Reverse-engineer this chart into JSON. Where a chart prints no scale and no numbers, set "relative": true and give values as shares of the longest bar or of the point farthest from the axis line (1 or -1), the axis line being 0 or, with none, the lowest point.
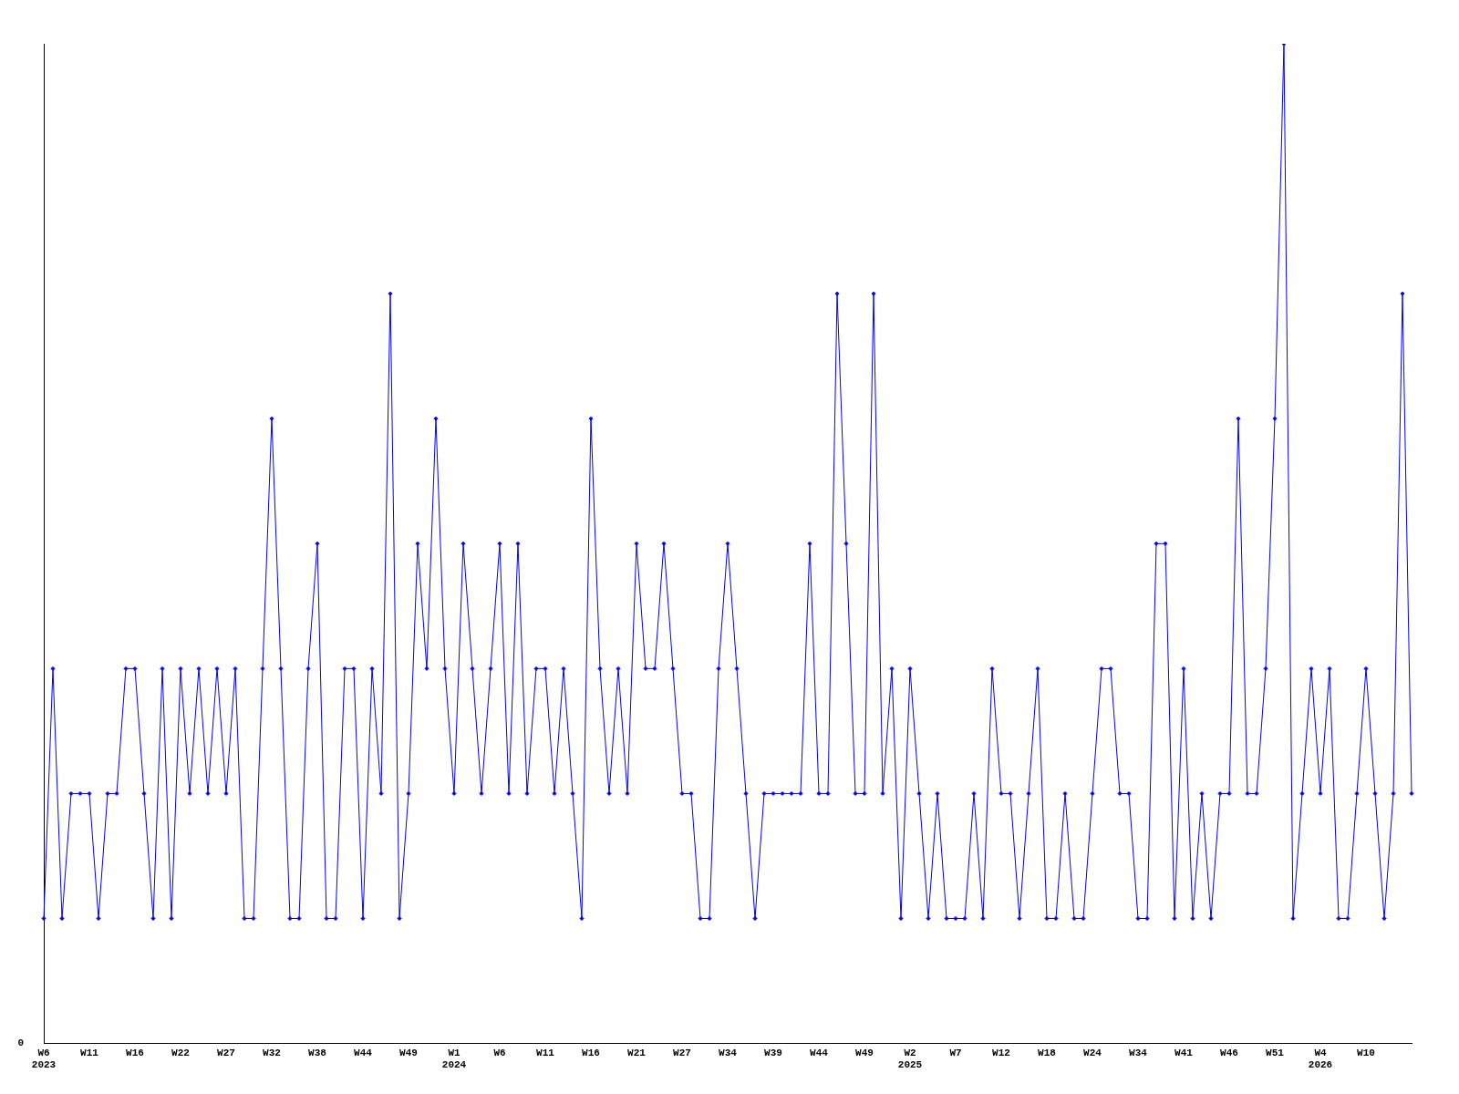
{
  "chart_data": {
    "type": "line",
    "relative": true,
    "marker": "diamond",
    "grid": false,
    "legend": false,
    "annotations": [
      "0"
    ],
    "categories": [
      "W6\n2023",
      null,
      null,
      null,
      null,
      "W11",
      null,
      null,
      null,
      null,
      "W16",
      null,
      null,
      null,
      null,
      "W22",
      null,
      null,
      null,
      null,
      "W27",
      null,
      null,
      null,
      null,
      "W32",
      null,
      null,
      null,
      null,
      "W38",
      null,
      null,
      null,
      null,
      "W44",
      null,
      null,
      null,
      null,
      "W49",
      null,
      null,
      null,
      null,
      "W1\n2024",
      null,
      null,
      null,
      null,
      "W6",
      null,
      null,
      null,
      null,
      "W11",
      null,
      null,
      null,
      null,
      "W16",
      null,
      null,
      null,
      null,
      "W21",
      null,
      null,
      null,
      null,
      "W27",
      null,
      null,
      null,
      null,
      "W34",
      null,
      null,
      null,
      null,
      "W39",
      null,
      null,
      null,
      null,
      "W44",
      null,
      null,
      null,
      null,
      "W49",
      null,
      null,
      null,
      null,
      "W2\n2025",
      null,
      null,
      null,
      null,
      "W7",
      null,
      null,
      null,
      null,
      "W12",
      null,
      null,
      null,
      null,
      "W18",
      null,
      null,
      null,
      null,
      "W24",
      null,
      null,
      null,
      null,
      "W34",
      null,
      null,
      null,
      null,
      "W41",
      null,
      null,
      null,
      null,
      "W46",
      null,
      null,
      null,
      null,
      "W51",
      null,
      null,
      null,
      null,
      "W4\n2026",
      null,
      null,
      null,
      null,
      "W10",
      null,
      null,
      null,
      null,
      null
    ],
    "series": [
      {
        "color": "#0000ff",
        "values": [
          0.125,
          0.375,
          0.125,
          0.25,
          0.25,
          0.25,
          0.125,
          0.25,
          0.25,
          0.375,
          0.375,
          0.25,
          0.125,
          0.375,
          0.125,
          0.375,
          0.25,
          0.375,
          0.25,
          0.375,
          0.25,
          0.375,
          0.125,
          0.125,
          0.375,
          0.625,
          0.375,
          0.125,
          0.125,
          0.375,
          0.5,
          0.125,
          0.125,
          0.375,
          0.375,
          0.125,
          0.375,
          0.25,
          0.75,
          0.125,
          0.25,
          0.5,
          0.375,
          0.625,
          0.375,
          0.25,
          0.5,
          0.375,
          0.25,
          0.375,
          0.5,
          0.25,
          0.5,
          0.25,
          0.375,
          0.375,
          0.25,
          0.375,
          0.25,
          0.125,
          0.625,
          0.375,
          0.25,
          0.375,
          0.25,
          0.5,
          0.375,
          0.375,
          0.5,
          0.375,
          0.25,
          0.25,
          0.125,
          0.125,
          0.375,
          0.5,
          0.375,
          0.25,
          0.125,
          0.25,
          0.25,
          0.25,
          0.25,
          0.25,
          0.5,
          0.25,
          0.25,
          0.75,
          0.5,
          0.25,
          0.25,
          0.75,
          0.25,
          0.375,
          0.125,
          0.375,
          0.25,
          0.125,
          0.25,
          0.125,
          0.125,
          0.125,
          0.25,
          0.125,
          0.375,
          0.25,
          0.25,
          0.125,
          0.25,
          0.375,
          0.125,
          0.125,
          0.25,
          0.125,
          0.125,
          0.25,
          0.375,
          0.375,
          0.25,
          0.25,
          0.125,
          0.125,
          0.5,
          0.5,
          0.125,
          0.375,
          0.125,
          0.25,
          0.125,
          0.25,
          0.25,
          0.625,
          0.25,
          0.25,
          0.375,
          0.625,
          1,
          0.125,
          0.25,
          0.375,
          0.25,
          0.375,
          0.125,
          0.125,
          0.25,
          0.375,
          0.25,
          0.125,
          0.25,
          0.75,
          0.25
        ]
      }
    ]
  }
}
